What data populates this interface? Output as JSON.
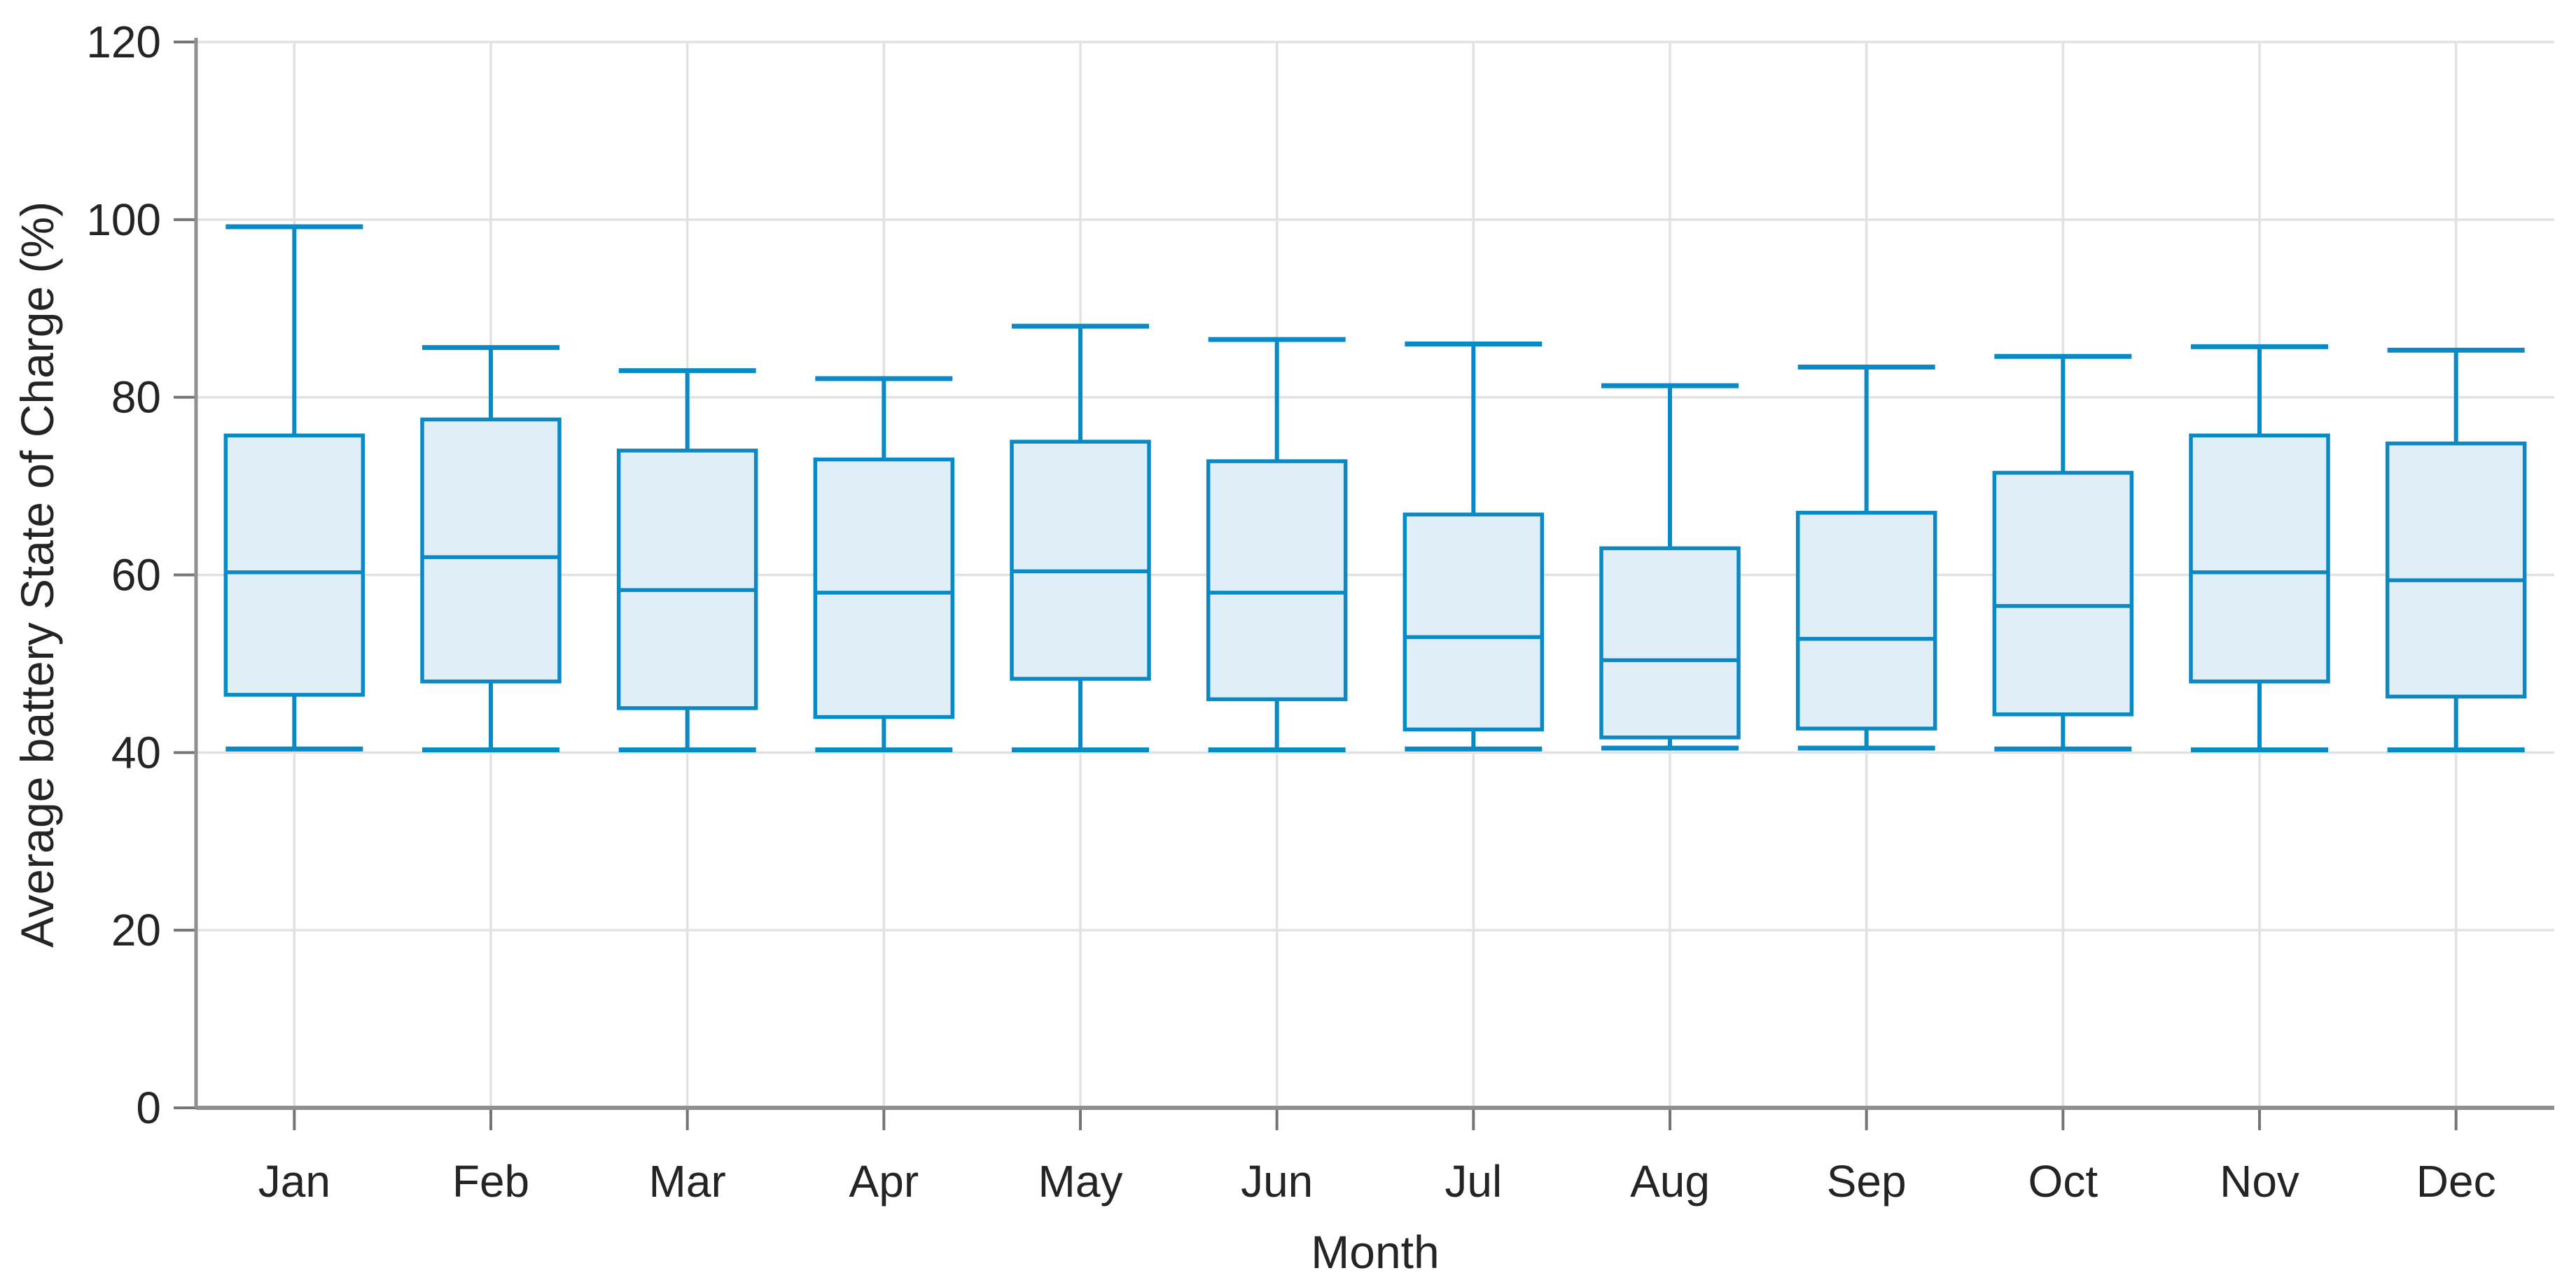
{
  "window": {
    "background": "#ffffff"
  },
  "chart_data": {
    "type": "boxplot",
    "title": "",
    "xlabel": "Month",
    "ylabel": "Average battery State of Charge (%)",
    "ylim": [
      0,
      120
    ],
    "yticks": [
      0,
      20,
      40,
      60,
      80,
      100,
      120
    ],
    "grid": true,
    "legend": false,
    "categories": [
      "Jan",
      "Feb",
      "Mar",
      "Apr",
      "May",
      "Jun",
      "Jul",
      "Aug",
      "Sep",
      "Oct",
      "Nov",
      "Dec"
    ],
    "boxes": [
      {
        "category": "Jan",
        "min": 40.4,
        "q1": 46.5,
        "median": 60.3,
        "q3": 75.7,
        "max": 99.2
      },
      {
        "category": "Feb",
        "min": 40.3,
        "q1": 48.0,
        "median": 62.0,
        "q3": 77.5,
        "max": 85.6
      },
      {
        "category": "Mar",
        "min": 40.3,
        "q1": 45.0,
        "median": 58.3,
        "q3": 74.0,
        "max": 83.0
      },
      {
        "category": "Apr",
        "min": 40.3,
        "q1": 44.0,
        "median": 58.0,
        "q3": 73.0,
        "max": 82.1
      },
      {
        "category": "May",
        "min": 40.3,
        "q1": 48.3,
        "median": 60.4,
        "q3": 75.0,
        "max": 88.0
      },
      {
        "category": "Jun",
        "min": 40.3,
        "q1": 46.0,
        "median": 58.0,
        "q3": 72.8,
        "max": 86.5
      },
      {
        "category": "Jul",
        "min": 40.4,
        "q1": 42.6,
        "median": 53.0,
        "q3": 66.8,
        "max": 86.0
      },
      {
        "category": "Aug",
        "min": 40.5,
        "q1": 41.7,
        "median": 50.4,
        "q3": 63.0,
        "max": 81.3
      },
      {
        "category": "Sep",
        "min": 40.5,
        "q1": 42.7,
        "median": 52.8,
        "q3": 67.0,
        "max": 83.4
      },
      {
        "category": "Oct",
        "min": 40.4,
        "q1": 44.3,
        "median": 56.5,
        "q3": 71.5,
        "max": 84.6
      },
      {
        "category": "Nov",
        "min": 40.3,
        "q1": 48.0,
        "median": 60.3,
        "q3": 75.7,
        "max": 85.7
      },
      {
        "category": "Dec",
        "min": 40.3,
        "q1": 46.3,
        "median": 59.4,
        "q3": 74.8,
        "max": 85.3
      }
    ]
  },
  "colors": {
    "box_stroke": "#0a8ac4",
    "box_fill": "#e0eef7",
    "gridline": "#e2e2e2",
    "axis_line": "#8f8f8f",
    "tick_mark": "#757575",
    "text": "#252423"
  }
}
